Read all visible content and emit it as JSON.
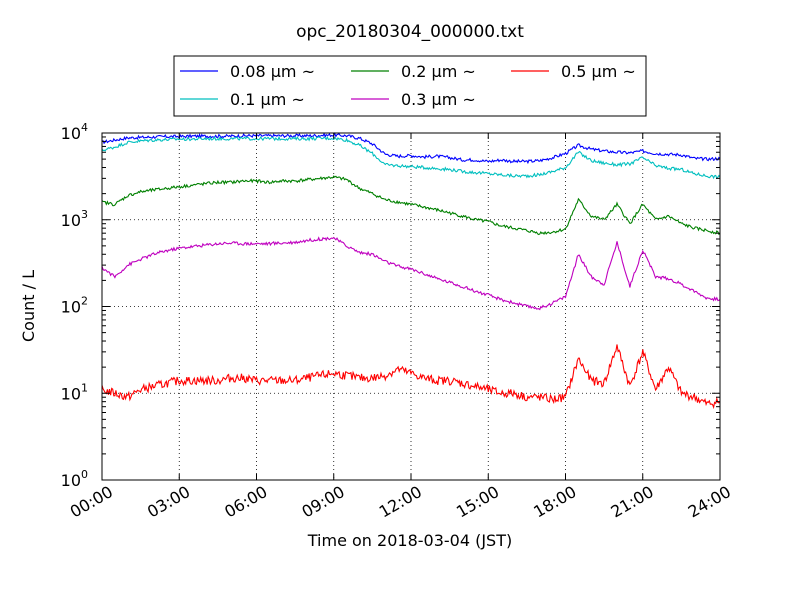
{
  "chart_data": {
    "type": "line",
    "title": "opc_20180304_000000.txt",
    "xlabel": "Time on 2018-03-04 (JST)",
    "ylabel": "Count / L",
    "xlim": [
      "2018-03-04 00:00",
      "2018-03-05 00:00"
    ],
    "ylim": [
      1,
      10000
    ],
    "y_scale": "log",
    "grid": true,
    "legend_position": "top-center",
    "x_ticks": [
      "00:00",
      "03:00",
      "06:00",
      "09:00",
      "12:00",
      "15:00",
      "18:00",
      "21:00",
      "24:00"
    ],
    "y_ticks": [
      {
        "value": 1,
        "base": "10",
        "exp": "0"
      },
      {
        "value": 10,
        "base": "10",
        "exp": "1"
      },
      {
        "value": 100,
        "base": "10",
        "exp": "2"
      },
      {
        "value": 1000,
        "base": "10",
        "exp": "3"
      },
      {
        "value": 10000,
        "base": "10",
        "exp": "4"
      }
    ],
    "x": [
      "00:00",
      "00:30",
      "01:00",
      "01:30",
      "02:00",
      "02:30",
      "03:00",
      "03:30",
      "04:00",
      "04:30",
      "05:00",
      "05:30",
      "06:00",
      "06:30",
      "07:00",
      "07:30",
      "08:00",
      "08:30",
      "09:00",
      "09:30",
      "10:00",
      "10:30",
      "11:00",
      "11:30",
      "12:00",
      "12:30",
      "13:00",
      "13:30",
      "14:00",
      "14:30",
      "15:00",
      "15:30",
      "16:00",
      "16:30",
      "17:00",
      "17:30",
      "18:00",
      "18:30",
      "19:00",
      "19:30",
      "20:00",
      "20:30",
      "21:00",
      "21:30",
      "22:00",
      "22:30",
      "23:00",
      "23:30",
      "24:00"
    ],
    "series": [
      {
        "name": "0.08 μm ~",
        "color": "#0000ff",
        "values": [
          7800,
          8300,
          8800,
          8900,
          9000,
          9100,
          9100,
          9200,
          9200,
          9200,
          9200,
          9300,
          9300,
          9300,
          9300,
          9300,
          9300,
          9400,
          9500,
          9300,
          8700,
          7500,
          5700,
          5400,
          5500,
          5300,
          5400,
          5200,
          4900,
          4900,
          4700,
          4900,
          4700,
          4700,
          4800,
          5200,
          5800,
          7200,
          6500,
          6200,
          6000,
          5900,
          6200,
          5800,
          5700,
          5600,
          5100,
          5000,
          5100
        ]
      },
      {
        "name": "0.1 μm ~",
        "color": "#00bfbf",
        "values": [
          6300,
          6900,
          7800,
          8100,
          8300,
          8400,
          8500,
          8500,
          8600,
          8600,
          8600,
          8600,
          8600,
          8600,
          8600,
          8600,
          8600,
          8700,
          8700,
          8300,
          7200,
          5800,
          4300,
          4200,
          4100,
          4000,
          3900,
          3800,
          3600,
          3500,
          3400,
          3300,
          3200,
          3200,
          3300,
          3600,
          4000,
          6000,
          4800,
          4500,
          4300,
          4400,
          5200,
          4200,
          3900,
          3800,
          3400,
          3200,
          3100
        ]
      },
      {
        "name": "0.2 μm ~",
        "color": "#008000",
        "values": [
          1600,
          1500,
          1900,
          2100,
          2200,
          2300,
          2400,
          2500,
          2600,
          2700,
          2700,
          2800,
          2800,
          2700,
          2800,
          2800,
          2900,
          3000,
          3100,
          2900,
          2300,
          2000,
          1700,
          1600,
          1500,
          1400,
          1300,
          1200,
          1100,
          1000,
          950,
          850,
          800,
          750,
          700,
          720,
          780,
          1700,
          1100,
          1000,
          1500,
          900,
          1500,
          1000,
          1100,
          900,
          800,
          750,
          700
        ]
      },
      {
        "name": "0.3 μm ~",
        "color": "#bf00bf",
        "values": [
          280,
          220,
          300,
          350,
          400,
          440,
          470,
          490,
          510,
          530,
          540,
          530,
          530,
          530,
          540,
          550,
          580,
          600,
          620,
          500,
          420,
          400,
          330,
          290,
          270,
          240,
          210,
          190,
          170,
          150,
          135,
          120,
          110,
          100,
          95,
          110,
          130,
          400,
          220,
          180,
          550,
          170,
          450,
          220,
          210,
          180,
          150,
          125,
          120
        ]
      },
      {
        "name": "0.5 μm ~",
        "color": "#ff0000",
        "values": [
          11,
          10,
          9,
          11,
          12,
          13,
          14,
          14,
          14,
          14,
          15,
          15,
          14,
          14,
          14,
          14,
          15,
          16,
          17,
          16,
          15,
          15,
          16,
          19,
          17,
          15,
          14,
          14,
          13,
          12,
          11,
          10,
          10,
          9,
          9,
          8.5,
          9,
          25,
          14,
          13,
          35,
          12,
          30,
          11,
          20,
          10,
          9,
          7.5,
          8
        ]
      }
    ]
  }
}
